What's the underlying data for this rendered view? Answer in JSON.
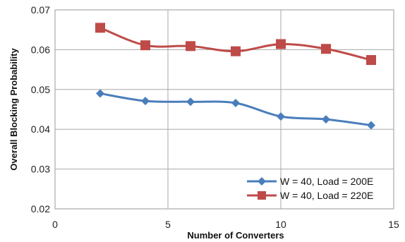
{
  "chart_data": {
    "type": "line",
    "xlabel": "Number of Converters",
    "ylabel": "Overall Blocking Probability",
    "xlim": [
      0,
      15
    ],
    "ylim": [
      0.02,
      0.07
    ],
    "x_ticks": [
      "0",
      "5",
      "10",
      "15"
    ],
    "y_ticks": [
      "0.02",
      "0.03",
      "0.04",
      "0.05",
      "0.06",
      "0.07"
    ],
    "grid": true,
    "legend_position": "bottom-right",
    "series": [
      {
        "name": "W = 40, Load = 200E",
        "color": "#4a7ebb",
        "marker": "diamond",
        "x": [
          2,
          4,
          6,
          8,
          10,
          12,
          14
        ],
        "y": [
          0.049,
          0.0471,
          0.0469,
          0.0466,
          0.0432,
          0.0425,
          0.041
        ]
      },
      {
        "name": "W = 40, Load = 220E",
        "color": "#be4b48",
        "marker": "square",
        "x": [
          2,
          4,
          6,
          8,
          10,
          12,
          14
        ],
        "y": [
          0.0655,
          0.0611,
          0.0609,
          0.0596,
          0.0614,
          0.0602,
          0.0574
        ]
      }
    ]
  }
}
